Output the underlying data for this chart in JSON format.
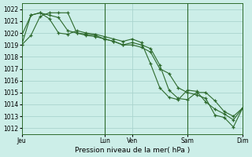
{
  "bg_color": "#cceee8",
  "grid_color": "#aad4ce",
  "line_color": "#2d6a2d",
  "xlabel": "Pression niveau de la mer( hPa )",
  "ylim": [
    1011.5,
    1022.5
  ],
  "yticks": [
    1012,
    1013,
    1014,
    1015,
    1016,
    1017,
    1018,
    1019,
    1020,
    1021,
    1022
  ],
  "xtick_labels": [
    "Jeu",
    "Lun",
    "Ven",
    "Sam",
    "Dim"
  ],
  "xtick_positions": [
    0,
    36,
    48,
    72,
    96
  ],
  "xlim": [
    0,
    96
  ],
  "vlines": [
    36,
    72
  ],
  "series": [
    {
      "x": [
        0,
        4,
        8,
        12,
        16,
        20,
        24,
        28,
        32,
        36,
        40,
        44,
        48,
        52,
        56,
        60,
        64,
        68,
        72,
        76,
        80,
        84,
        88,
        92,
        96
      ],
      "y": [
        1019.0,
        1021.5,
        1021.7,
        1021.5,
        1021.3,
        1020.2,
        1020.0,
        1019.9,
        1019.8,
        1019.5,
        1019.3,
        1019.0,
        1019.0,
        1018.8,
        1018.4,
        1017.0,
        1016.6,
        1015.4,
        1015.0,
        1014.8,
        1014.5,
        1013.1,
        1012.9,
        1012.1,
        1013.7
      ]
    },
    {
      "x": [
        0,
        4,
        8,
        12,
        16,
        20,
        24,
        28,
        32,
        36,
        40,
        44,
        48,
        52,
        56,
        60,
        64,
        68,
        72,
        76,
        80,
        84,
        88,
        92,
        96
      ],
      "y": [
        1019.8,
        1021.5,
        1021.7,
        1021.2,
        1020.0,
        1019.9,
        1020.2,
        1020.0,
        1019.9,
        1019.7,
        1019.5,
        1019.3,
        1019.5,
        1019.2,
        1017.4,
        1015.4,
        1014.6,
        1014.4,
        1015.2,
        1015.1,
        1014.2,
        1013.6,
        1013.2,
        1012.7,
        1013.7
      ]
    },
    {
      "x": [
        0,
        4,
        8,
        12,
        16,
        20,
        24,
        28,
        32,
        36,
        40,
        44,
        48,
        52,
        56,
        60,
        64,
        68,
        72,
        76,
        80,
        84,
        88,
        92,
        96
      ],
      "y": [
        1019.0,
        1019.8,
        1021.4,
        1021.7,
        1021.7,
        1021.7,
        1020.0,
        1019.8,
        1019.7,
        1019.5,
        1019.3,
        1019.0,
        1019.2,
        1019.0,
        1018.7,
        1017.3,
        1015.2,
        1014.5,
        1014.4,
        1015.0,
        1015.0,
        1014.3,
        1013.4,
        1013.0,
        1013.7
      ]
    }
  ],
  "figsize": [
    3.2,
    2.0
  ],
  "dpi": 100
}
